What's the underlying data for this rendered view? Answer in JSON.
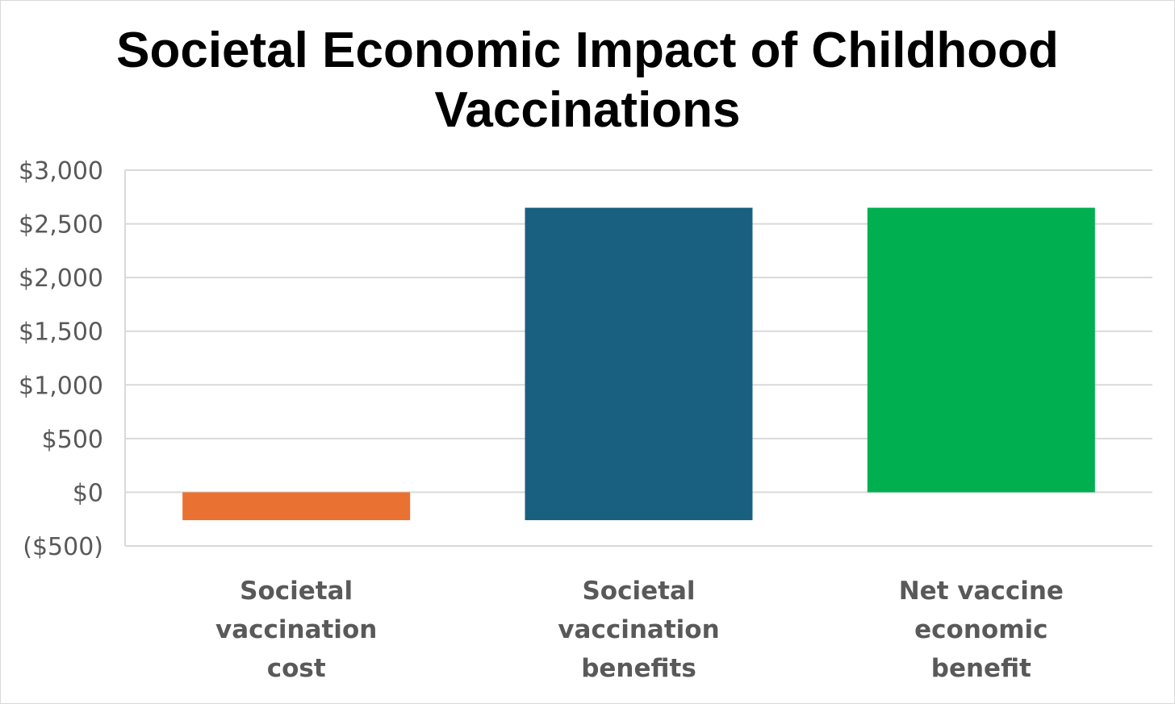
{
  "chart_data": {
    "type": "bar",
    "title_lines": [
      "Societal Economic Impact of Childhood",
      "Vaccinations"
    ],
    "xlabel": "",
    "ylabel": "",
    "ylim": [
      -500,
      3000
    ],
    "yticks": [
      3000,
      2500,
      2000,
      1500,
      1000,
      500,
      0,
      -500
    ],
    "ytick_labels": [
      "$3,000",
      "$2,500",
      "$2,000",
      "$1,500",
      "$1,000",
      "$500",
      "$0",
      "($500)"
    ],
    "grid": true,
    "legend": "none",
    "bars": [
      {
        "label_lines": [
          "Societal",
          "vaccination",
          "cost"
        ],
        "start": 0,
        "end": -260,
        "color": "#E97132"
      },
      {
        "label_lines": [
          "Societal",
          "vaccination",
          "benefits"
        ],
        "start": -260,
        "end": 2650,
        "color": "#196080"
      },
      {
        "label_lines": [
          "Net vaccine",
          "economic",
          "benefit"
        ],
        "start": 0,
        "end": 2650,
        "color": "#00B050"
      }
    ]
  }
}
